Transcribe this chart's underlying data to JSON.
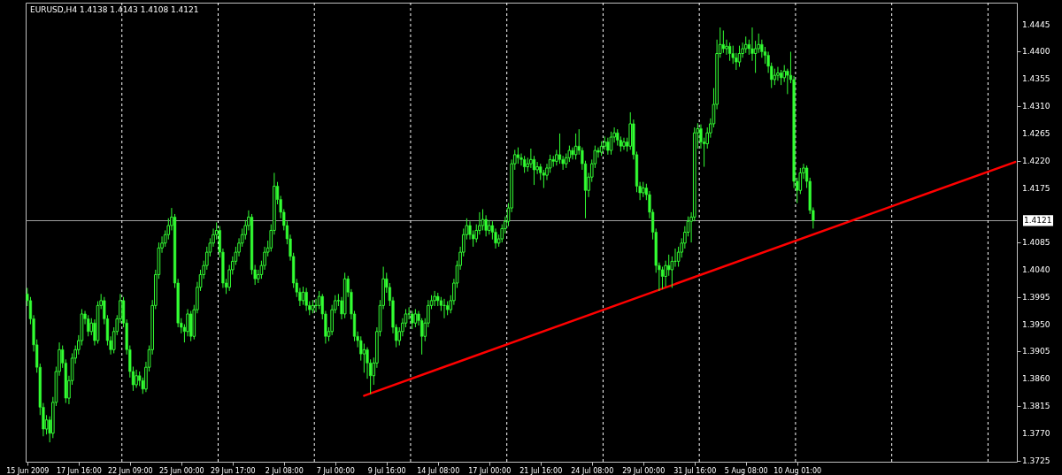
{
  "chart_data": {
    "type": "candlestick",
    "title": "EURUSD,H4  1.4138 1.4143 1.4108 1.4121",
    "categories": [
      "15 Jun 2009",
      null,
      null,
      null,
      null,
      null,
      null,
      null,
      null,
      null,
      null,
      null,
      null,
      null,
      null,
      null,
      "17 Jun 16:00",
      null,
      null,
      null,
      null,
      null,
      null,
      null,
      null,
      null,
      null,
      null,
      null,
      null,
      null,
      null,
      "22 Jun 09:00",
      null,
      null,
      null,
      null,
      null,
      null,
      null,
      null,
      null,
      null,
      null,
      null,
      null,
      null,
      null,
      "25 Jun 00:00",
      null,
      null,
      null,
      null,
      null,
      null,
      null,
      null,
      null,
      null,
      null,
      null,
      null,
      null,
      null,
      "29 Jun 17:00",
      null,
      null,
      null,
      null,
      null,
      null,
      null,
      null,
      null,
      null,
      null,
      null,
      null,
      null,
      null,
      "2 Jul 08:00",
      null,
      null,
      null,
      null,
      null,
      null,
      null,
      null,
      null,
      null,
      null,
      null,
      null,
      null,
      null,
      "7 Jul 00:00",
      null,
      null,
      null,
      null,
      null,
      null,
      null,
      null,
      null,
      null,
      null,
      null,
      null,
      null,
      null,
      "9 Jul 16:00",
      null,
      null,
      null,
      null,
      null,
      null,
      null,
      null,
      null,
      null,
      null,
      null,
      null,
      null,
      null,
      "14 Jul 08:00",
      null,
      null,
      null,
      null,
      null,
      null,
      null,
      null,
      null,
      null,
      null,
      null,
      null,
      null,
      null,
      "17 Jul 00:00",
      null,
      null,
      null,
      null,
      null,
      null,
      null,
      null,
      null,
      null,
      null,
      null,
      null,
      null,
      null,
      "21 Jul 16:00",
      null,
      null,
      null,
      null,
      null,
      null,
      null,
      null,
      null,
      null,
      null,
      null,
      null,
      null,
      null,
      "24 Jul 08:00",
      null,
      null,
      null,
      null,
      null,
      null,
      null,
      null,
      null,
      null,
      null,
      null,
      null,
      null,
      null,
      "29 Jul 00:00",
      null,
      null,
      null,
      null,
      null,
      null,
      null,
      null,
      null,
      null,
      null,
      null,
      null,
      null,
      null,
      "31 Jul 16:00",
      null,
      null,
      null,
      null,
      null,
      null,
      null,
      null,
      null,
      null,
      null,
      null,
      null,
      null,
      null,
      "5 Aug 08:00",
      null,
      null,
      null,
      null,
      null,
      null,
      null,
      null,
      null,
      null,
      null,
      null,
      null,
      null,
      null,
      "10 Aug 01:00",
      null,
      null,
      null,
      null,
      null,
      null,
      null,
      null,
      null,
      null,
      null,
      null,
      null,
      null,
      null,
      null,
      null,
      null,
      null,
      null,
      null,
      null,
      null,
      null,
      null,
      null,
      null,
      null,
      null,
      null,
      null,
      null,
      null,
      null,
      null,
      null,
      null,
      null,
      null,
      null,
      null,
      null,
      null,
      null,
      null,
      null,
      null,
      null,
      null,
      null,
      null,
      null,
      null,
      null,
      null,
      null,
      null,
      null,
      null,
      null,
      null,
      null,
      null,
      null,
      null,
      null,
      null,
      null
    ],
    "ylim": [
      1.3723,
      1.4481
    ],
    "yticks": [
      1.3725,
      {
        "value": 1.377,
        "label": "1.3770"
      },
      1.3815,
      {
        "value": 1.386,
        "label": "1.3860"
      },
      1.3905,
      {
        "value": 1.395,
        "label": "1.3950"
      },
      1.3995,
      {
        "value": 1.404,
        "label": "1.4040"
      },
      1.4085,
      1.4175,
      {
        "value": 1.422,
        "label": "1.4220"
      },
      1.4265,
      {
        "value": 1.431,
        "label": "1.4310"
      },
      1.4355,
      {
        "value": 1.44,
        "label": "1.4400"
      },
      1.4445
    ],
    "ref_lines": [
      {
        "axis": "y",
        "value": 1.4121,
        "label": "1.4121",
        "color": "#a0a0a0"
      }
    ],
    "series": [
      {
        "color": "#33ff33",
        "ohlc": [
          [
            1.4,
            1.401,
            1.398,
            1.3989
          ],
          [
            1.3989,
            1.3995,
            1.395,
            1.3959
          ],
          [
            1.3959,
            1.3965,
            1.3905,
            1.3916
          ],
          [
            1.3916,
            1.3925,
            1.387,
            1.3879
          ],
          [
            1.3879,
            1.3885,
            1.38,
            1.3813
          ],
          [
            1.3813,
            1.382,
            1.3765,
            1.3777
          ],
          [
            1.3777,
            1.38,
            1.3768,
            1.3792
          ],
          [
            1.3792,
            1.3798,
            1.3755,
            1.377
          ],
          [
            1.377,
            1.383,
            1.3762,
            1.3821
          ],
          [
            1.3821,
            1.388,
            1.3815,
            1.3872
          ],
          [
            1.3872,
            1.392,
            1.3865,
            1.3908
          ],
          [
            1.3908,
            1.3915,
            1.3878,
            1.3886
          ],
          [
            1.3886,
            1.3892,
            1.382,
            1.3828
          ],
          [
            1.3828,
            1.3865,
            1.3818,
            1.3857
          ],
          [
            1.3857,
            1.3902,
            1.385,
            1.3894
          ],
          [
            1.3894,
            1.3915,
            1.3885,
            1.3908
          ],
          [
            1.3908,
            1.3932,
            1.39,
            1.3923
          ],
          [
            1.3923,
            1.3975,
            1.3915,
            1.3967
          ],
          [
            1.3967,
            1.3972,
            1.395,
            1.3959
          ],
          [
            1.3959,
            1.3965,
            1.393,
            1.3938
          ],
          [
            1.3938,
            1.396,
            1.3932,
            1.3952
          ],
          [
            1.3952,
            1.3958,
            1.3915,
            1.3923
          ],
          [
            1.3923,
            1.3988,
            1.3918,
            1.3981
          ],
          [
            1.3981,
            1.4,
            1.3975,
            1.3989
          ],
          [
            1.3989,
            1.3995,
            1.395,
            1.3959
          ],
          [
            1.3959,
            1.3965,
            1.3915,
            1.3923
          ],
          [
            1.3923,
            1.393,
            1.39,
            1.3908
          ],
          [
            1.3908,
            1.3945,
            1.3902,
            1.3938
          ],
          [
            1.3938,
            1.3965,
            1.3932,
            1.3959
          ],
          [
            1.3959,
            1.4,
            1.3952,
            1.3989
          ],
          [
            1.3989,
            1.3995,
            1.3945,
            1.3952
          ],
          [
            1.3952,
            1.3958,
            1.39,
            1.3908
          ],
          [
            1.3908,
            1.3915,
            1.3862,
            1.3872
          ],
          [
            1.3872,
            1.388,
            1.384,
            1.385
          ],
          [
            1.385,
            1.3875,
            1.3845,
            1.3865
          ],
          [
            1.3865,
            1.3872,
            1.3848,
            1.3857
          ],
          [
            1.3857,
            1.3862,
            1.3835,
            1.3843
          ],
          [
            1.3843,
            1.3888,
            1.3838,
            1.3879
          ],
          [
            1.3879,
            1.3915,
            1.3872,
            1.3908
          ],
          [
            1.3908,
            1.399,
            1.39,
            1.3981
          ],
          [
            1.3981,
            1.404,
            1.3975,
            1.4032
          ],
          [
            1.4032,
            1.4085,
            1.4025,
            1.4076
          ],
          [
            1.4076,
            1.4095,
            1.4068,
            1.4084
          ],
          [
            1.4084,
            1.4105,
            1.4078,
            1.4098
          ],
          [
            1.4098,
            1.4125,
            1.409,
            1.4113
          ],
          [
            1.4113,
            1.4142,
            1.4105,
            1.4127
          ],
          [
            1.4127,
            1.4132,
            1.401,
            1.4018
          ],
          [
            1.4018,
            1.4025,
            1.3945,
            1.3952
          ],
          [
            1.3952,
            1.396,
            1.3935,
            1.3945
          ],
          [
            1.3945,
            1.395,
            1.392,
            1.3938
          ],
          [
            1.3938,
            1.3975,
            1.393,
            1.3967
          ],
          [
            1.3967,
            1.3972,
            1.3922,
            1.393
          ],
          [
            1.393,
            1.3982,
            1.3925,
            1.3974
          ],
          [
            1.3974,
            1.402,
            1.3968,
            1.4011
          ],
          [
            1.4011,
            1.404,
            1.4005,
            1.4032
          ],
          [
            1.4032,
            1.4055,
            1.4025,
            1.4047
          ],
          [
            1.4047,
            1.4078,
            1.404,
            1.4069
          ],
          [
            1.4069,
            1.4092,
            1.4062,
            1.4084
          ],
          [
            1.4084,
            1.4108,
            1.4078,
            1.4098
          ],
          [
            1.4098,
            1.4118,
            1.409,
            1.4105
          ],
          [
            1.4105,
            1.4112,
            1.406,
            1.4069
          ],
          [
            1.4069,
            1.4075,
            1.401,
            1.4018
          ],
          [
            1.4018,
            1.4025,
            1.4,
            1.4011
          ],
          [
            1.4011,
            1.4048,
            1.4005,
            1.404
          ],
          [
            1.404,
            1.4062,
            1.4032,
            1.4054
          ],
          [
            1.4054,
            1.4078,
            1.4048,
            1.4069
          ],
          [
            1.4069,
            1.4092,
            1.4062,
            1.4084
          ],
          [
            1.4084,
            1.4108,
            1.4078,
            1.4098
          ],
          [
            1.4098,
            1.4122,
            1.409,
            1.4113
          ],
          [
            1.4113,
            1.4138,
            1.4105,
            1.4127
          ],
          [
            1.4127,
            1.4132,
            1.4032,
            1.404
          ],
          [
            1.404,
            1.4048,
            1.4015,
            1.4025
          ],
          [
            1.4025,
            1.404,
            1.4018,
            1.4032
          ],
          [
            1.4032,
            1.4055,
            1.4025,
            1.4047
          ],
          [
            1.4047,
            1.4078,
            1.404,
            1.4069
          ],
          [
            1.4069,
            1.4088,
            1.4062,
            1.4076
          ],
          [
            1.4076,
            1.4115,
            1.407,
            1.4105
          ],
          [
            1.4105,
            1.42,
            1.4098,
            1.4178
          ],
          [
            1.4178,
            1.4185,
            1.4148,
            1.4156
          ],
          [
            1.4156,
            1.4162,
            1.4125,
            1.4135
          ],
          [
            1.4135,
            1.414,
            1.4105,
            1.4113
          ],
          [
            1.4113,
            1.412,
            1.4082,
            1.4091
          ],
          [
            1.4091,
            1.4098,
            1.4055,
            1.4062
          ],
          [
            1.4062,
            1.4068,
            1.401,
            1.4018
          ],
          [
            1.4018,
            1.4025,
            1.3995,
            1.4003
          ],
          [
            1.4003,
            1.401,
            1.398,
            1.3989
          ],
          [
            1.3989,
            1.4012,
            1.3982,
            1.4003
          ],
          [
            1.4003,
            1.401,
            1.3972,
            1.3981
          ],
          [
            1.3981,
            1.3988,
            1.3965,
            1.3974
          ],
          [
            1.3974,
            1.399,
            1.3968,
            1.3981
          ],
          [
            1.3981,
            1.3992,
            1.397,
            1.3981
          ],
          [
            1.3981,
            1.4005,
            1.3975,
            1.3996
          ],
          [
            1.3996,
            1.4,
            1.3958,
            1.3967
          ],
          [
            1.3967,
            1.3972,
            1.3918,
            1.393
          ],
          [
            1.393,
            1.3945,
            1.3922,
            1.3938
          ],
          [
            1.3938,
            1.3982,
            1.3932,
            1.3974
          ],
          [
            1.3974,
            1.3998,
            1.3968,
            1.3989
          ],
          [
            1.3989,
            1.4,
            1.398,
            1.3989
          ],
          [
            1.3989,
            1.3995,
            1.3958,
            1.3967
          ],
          [
            1.3967,
            1.4035,
            1.396,
            1.4025
          ],
          [
            1.4025,
            1.403,
            1.3995,
            1.4003
          ],
          [
            1.4003,
            1.4008,
            1.3958,
            1.3967
          ],
          [
            1.3967,
            1.3972,
            1.3922,
            1.393
          ],
          [
            1.393,
            1.3938,
            1.3912,
            1.3923
          ],
          [
            1.3923,
            1.393,
            1.389,
            1.3901
          ],
          [
            1.3901,
            1.3918,
            1.387,
            1.3908
          ],
          [
            1.3908,
            1.3912,
            1.386,
            1.3886
          ],
          [
            1.3886,
            1.3892,
            1.3835,
            1.3865
          ],
          [
            1.3865,
            1.3895,
            1.385,
            1.3886
          ],
          [
            1.3886,
            1.3945,
            1.3878,
            1.3938
          ],
          [
            1.3938,
            1.399,
            1.393,
            1.3981
          ],
          [
            1.3981,
            1.4045,
            1.3975,
            1.4025
          ],
          [
            1.4025,
            1.4035,
            1.4002,
            1.4011
          ],
          [
            1.4011,
            1.4018,
            1.398,
            1.3989
          ],
          [
            1.3989,
            1.3995,
            1.3935,
            1.3945
          ],
          [
            1.3945,
            1.395,
            1.3912,
            1.3923
          ],
          [
            1.3923,
            1.3945,
            1.3915,
            1.3938
          ],
          [
            1.3938,
            1.396,
            1.393,
            1.3952
          ],
          [
            1.3952,
            1.3975,
            1.3945,
            1.3967
          ],
          [
            1.3967,
            1.3978,
            1.3958,
            1.3967
          ],
          [
            1.3967,
            1.3972,
            1.3942,
            1.3952
          ],
          [
            1.3952,
            1.3975,
            1.3945,
            1.3967
          ],
          [
            1.3967,
            1.3972,
            1.3948,
            1.3956
          ],
          [
            1.3956,
            1.396,
            1.39,
            1.393
          ],
          [
            1.393,
            1.396,
            1.3922,
            1.3952
          ],
          [
            1.3952,
            1.399,
            1.3945,
            1.3981
          ],
          [
            1.3981,
            1.3998,
            1.3975,
            1.3989
          ],
          [
            1.3989,
            1.4005,
            1.398,
            1.3996
          ],
          [
            1.3996,
            1.4002,
            1.398,
            1.3989
          ],
          [
            1.3989,
            1.3995,
            1.3972,
            1.3981
          ],
          [
            1.3981,
            1.3992,
            1.396,
            1.3981
          ],
          [
            1.3981,
            1.3988,
            1.3965,
            1.3974
          ],
          [
            1.3974,
            1.3998,
            1.3968,
            1.3989
          ],
          [
            1.3989,
            1.4025,
            1.3982,
            1.4018
          ],
          [
            1.4018,
            1.4055,
            1.401,
            1.4047
          ],
          [
            1.4047,
            1.4078,
            1.404,
            1.4069
          ],
          [
            1.4069,
            1.4108,
            1.4062,
            1.4098
          ],
          [
            1.4098,
            1.4125,
            1.409,
            1.4113
          ],
          [
            1.4113,
            1.412,
            1.409,
            1.4098
          ],
          [
            1.4098,
            1.4105,
            1.4078,
            1.4091
          ],
          [
            1.4091,
            1.4115,
            1.4085,
            1.4105
          ],
          [
            1.4105,
            1.4135,
            1.4098,
            1.4113
          ],
          [
            1.4113,
            1.414,
            1.4105,
            1.4123
          ],
          [
            1.4123,
            1.413,
            1.4095,
            1.4105
          ],
          [
            1.4105,
            1.4122,
            1.4098,
            1.4113
          ],
          [
            1.4113,
            1.412,
            1.409,
            1.4102
          ],
          [
            1.4102,
            1.4108,
            1.4075,
            1.4084
          ],
          [
            1.4084,
            1.4098,
            1.4078,
            1.4091
          ],
          [
            1.4091,
            1.4115,
            1.4085,
            1.4108
          ],
          [
            1.4108,
            1.4128,
            1.41,
            1.412
          ],
          [
            1.412,
            1.415,
            1.4112,
            1.4142
          ],
          [
            1.4142,
            1.4222,
            1.4135,
            1.4215
          ],
          [
            1.4215,
            1.4238,
            1.4205,
            1.423
          ],
          [
            1.423,
            1.4242,
            1.4215,
            1.4225
          ],
          [
            1.4225,
            1.4232,
            1.4212,
            1.4222
          ],
          [
            1.4222,
            1.4228,
            1.42,
            1.421
          ],
          [
            1.421,
            1.4225,
            1.4202,
            1.4215
          ],
          [
            1.4215,
            1.424,
            1.4208,
            1.4222
          ],
          [
            1.4222,
            1.4228,
            1.418,
            1.4205
          ],
          [
            1.4205,
            1.4218,
            1.4198,
            1.421
          ],
          [
            1.421,
            1.4215,
            1.4188,
            1.42
          ],
          [
            1.42,
            1.4205,
            1.4175,
            1.4196
          ],
          [
            1.4196,
            1.4215,
            1.4188,
            1.4208
          ],
          [
            1.4208,
            1.423,
            1.42,
            1.4222
          ],
          [
            1.4222,
            1.4228,
            1.421,
            1.4219
          ],
          [
            1.4219,
            1.4238,
            1.4212,
            1.423
          ],
          [
            1.423,
            1.4265,
            1.4215,
            1.4222
          ],
          [
            1.4222,
            1.4228,
            1.4205,
            1.4215
          ],
          [
            1.4215,
            1.4232,
            1.4208,
            1.4225
          ],
          [
            1.4225,
            1.4245,
            1.4218,
            1.4237
          ],
          [
            1.4237,
            1.4242,
            1.4222,
            1.423
          ],
          [
            1.423,
            1.4265,
            1.4222,
            1.4244
          ],
          [
            1.4244,
            1.4272,
            1.423,
            1.4237
          ],
          [
            1.4237,
            1.4242,
            1.4205,
            1.4215
          ],
          [
            1.4215,
            1.422,
            1.4125,
            1.4171
          ],
          [
            1.4171,
            1.42,
            1.416,
            1.4193
          ],
          [
            1.4193,
            1.4222,
            1.4185,
            1.4215
          ],
          [
            1.4215,
            1.4245,
            1.4208,
            1.4237
          ],
          [
            1.4237,
            1.4242,
            1.4225,
            1.4234
          ],
          [
            1.4234,
            1.4252,
            1.4228,
            1.4244
          ],
          [
            1.4244,
            1.426,
            1.4238,
            1.4251
          ],
          [
            1.4251,
            1.4258,
            1.423,
            1.4237
          ],
          [
            1.4237,
            1.4268,
            1.423,
            1.4259
          ],
          [
            1.4259,
            1.4275,
            1.425,
            1.4266
          ],
          [
            1.4266,
            1.4272,
            1.4245,
            1.4254
          ],
          [
            1.4254,
            1.426,
            1.4235,
            1.4244
          ],
          [
            1.4244,
            1.4258,
            1.4238,
            1.4251
          ],
          [
            1.4251,
            1.4258,
            1.4235,
            1.4244
          ],
          [
            1.4244,
            1.43,
            1.4238,
            1.4281
          ],
          [
            1.4281,
            1.4288,
            1.4222,
            1.423
          ],
          [
            1.423,
            1.4235,
            1.4168,
            1.4178
          ],
          [
            1.4178,
            1.4185,
            1.4155,
            1.4167
          ],
          [
            1.4167,
            1.4185,
            1.416,
            1.4175
          ],
          [
            1.4175,
            1.4182,
            1.4155,
            1.4164
          ],
          [
            1.4164,
            1.417,
            1.4125,
            1.4135
          ],
          [
            1.4135,
            1.414,
            1.409,
            1.4102
          ],
          [
            1.4102,
            1.4108,
            1.4035,
            1.4047
          ],
          [
            1.4047,
            1.4052,
            1.4005,
            1.404
          ],
          [
            1.404,
            1.4045,
            1.4008,
            1.4029
          ],
          [
            1.4029,
            1.4055,
            1.4012,
            1.4047
          ],
          [
            1.4047,
            1.4065,
            1.403,
            1.404
          ],
          [
            1.404,
            1.4062,
            1.401,
            1.4054
          ],
          [
            1.4054,
            1.4075,
            1.4045,
            1.4054
          ],
          [
            1.4054,
            1.4078,
            1.4045,
            1.4069
          ],
          [
            1.4069,
            1.4092,
            1.406,
            1.4084
          ],
          [
            1.4084,
            1.4112,
            1.4075,
            1.4102
          ],
          [
            1.4102,
            1.4128,
            1.4095,
            1.412
          ],
          [
            1.412,
            1.4135,
            1.4085,
            1.4127
          ],
          [
            1.4127,
            1.4275,
            1.412,
            1.4266
          ],
          [
            1.4266,
            1.4282,
            1.424,
            1.4273
          ],
          [
            1.4273,
            1.428,
            1.424,
            1.4251
          ],
          [
            1.4251,
            1.4258,
            1.421,
            1.4248
          ],
          [
            1.4248,
            1.4275,
            1.424,
            1.4266
          ],
          [
            1.4266,
            1.429,
            1.4258,
            1.4281
          ],
          [
            1.4281,
            1.434,
            1.4275,
            1.4313
          ],
          [
            1.4313,
            1.442,
            1.4305,
            1.4397
          ],
          [
            1.4397,
            1.444,
            1.439,
            1.4412
          ],
          [
            1.4412,
            1.4435,
            1.4398,
            1.4405
          ],
          [
            1.4405,
            1.442,
            1.4395,
            1.4409
          ],
          [
            1.4409,
            1.4415,
            1.4385,
            1.4397
          ],
          [
            1.4397,
            1.441,
            1.438,
            1.439
          ],
          [
            1.439,
            1.4398,
            1.437,
            1.4383
          ],
          [
            1.4383,
            1.441,
            1.4375,
            1.4397
          ],
          [
            1.4397,
            1.4415,
            1.439,
            1.4405
          ],
          [
            1.4405,
            1.4425,
            1.4398,
            1.4412
          ],
          [
            1.4412,
            1.442,
            1.4395,
            1.4405
          ],
          [
            1.4405,
            1.444,
            1.4385,
            1.4397
          ],
          [
            1.4397,
            1.4418,
            1.4365,
            1.4405
          ],
          [
            1.4405,
            1.443,
            1.4398,
            1.4412
          ],
          [
            1.4412,
            1.442,
            1.439,
            1.44
          ],
          [
            1.44,
            1.4408,
            1.438,
            1.4394
          ],
          [
            1.4394,
            1.44,
            1.4365,
            1.4376
          ],
          [
            1.4376,
            1.4382,
            1.434,
            1.4354
          ],
          [
            1.4354,
            1.4372,
            1.4345,
            1.4361
          ],
          [
            1.4361,
            1.4375,
            1.4352,
            1.4365
          ],
          [
            1.4365,
            1.437,
            1.4345,
            1.4357
          ],
          [
            1.4357,
            1.4378,
            1.435,
            1.4368
          ],
          [
            1.4368,
            1.4372,
            1.433,
            1.4361
          ],
          [
            1.4361,
            1.44,
            1.4348,
            1.4354
          ],
          [
            1.4354,
            1.436,
            1.4175,
            1.4186
          ],
          [
            1.4186,
            1.4192,
            1.415,
            1.4171
          ],
          [
            1.4171,
            1.4208,
            1.4165,
            1.42
          ],
          [
            1.42,
            1.4215,
            1.419,
            1.4208
          ],
          [
            1.4208,
            1.4212,
            1.4175,
            1.4186
          ],
          [
            1.4186,
            1.4192,
            1.4132,
            1.4138
          ],
          [
            1.4138,
            1.4143,
            1.4108,
            1.4121
          ],
          null,
          null,
          null,
          null,
          null,
          null,
          null,
          null,
          null,
          null,
          null,
          null,
          null,
          null,
          null,
          null,
          null,
          null,
          null,
          null,
          null,
          null,
          null,
          null,
          null,
          null,
          null,
          null,
          null,
          null,
          null,
          null,
          null,
          null,
          null,
          null,
          null,
          null,
          null,
          null,
          null,
          null,
          null,
          null,
          null,
          null,
          null,
          null,
          null,
          null,
          null,
          null,
          null,
          null,
          null,
          null,
          null,
          null,
          null,
          null,
          null,
          null,
          null
        ]
      },
      {
        "type": "line",
        "color": "#ff0000",
        "values": [
          null,
          null,
          null,
          null,
          null,
          null,
          null,
          null,
          null,
          null,
          null,
          null,
          null,
          null,
          null,
          null,
          null,
          null,
          null,
          null,
          null,
          null,
          null,
          null,
          null,
          null,
          null,
          null,
          null,
          null,
          null,
          null,
          null,
          null,
          null,
          null,
          null,
          null,
          null,
          null,
          null,
          null,
          null,
          null,
          null,
          null,
          null,
          null,
          null,
          null,
          null,
          null,
          null,
          null,
          null,
          null,
          null,
          null,
          null,
          null,
          null,
          null,
          null,
          null,
          null,
          null,
          null,
          null,
          null,
          null,
          null,
          null,
          null,
          null,
          null,
          null,
          null,
          null,
          null,
          null,
          null,
          null,
          null,
          null,
          null,
          null,
          null,
          null,
          null,
          null,
          null,
          null,
          null,
          null,
          null,
          null,
          null,
          null,
          null,
          null,
          null,
          null,
          null,
          null,
          null,
          1.3832,
          null,
          null,
          null,
          null,
          null,
          null,
          null,
          null,
          null,
          null,
          null,
          null,
          null,
          null,
          null,
          null,
          null,
          null,
          null,
          null,
          null,
          null,
          null,
          null,
          null,
          null,
          null,
          null,
          null,
          null,
          null,
          null,
          null,
          null,
          null,
          null,
          null,
          null,
          null,
          null,
          null,
          null,
          null,
          null,
          null,
          null,
          null,
          null,
          null,
          null,
          null,
          null,
          null,
          null,
          null,
          null,
          null,
          null,
          null,
          null,
          null,
          null,
          null,
          null,
          null,
          null,
          null,
          null,
          null,
          null,
          null,
          null,
          null,
          null,
          null,
          null,
          null,
          null,
          null,
          null,
          null,
          null,
          null,
          null,
          null,
          null,
          null,
          null,
          null,
          null,
          null,
          null,
          null,
          null,
          null,
          null,
          null,
          null,
          null,
          null,
          null,
          null,
          null,
          null,
          null,
          null,
          null,
          null,
          null,
          null,
          null,
          null,
          null,
          null,
          null,
          null,
          null,
          null,
          null,
          null,
          null,
          null,
          null,
          null,
          null,
          null,
          null,
          null,
          null,
          null,
          null,
          null,
          null,
          null,
          null,
          null,
          null,
          null,
          null,
          null,
          null,
          null,
          null,
          null,
          null,
          null,
          null,
          null,
          null,
          null,
          null,
          null,
          null,
          null,
          null,
          null,
          null,
          null,
          null,
          null,
          null,
          null,
          null,
          null,
          null,
          null,
          null,
          null,
          null,
          null,
          null,
          null,
          null,
          null,
          null,
          null,
          null,
          null,
          null,
          null,
          null,
          null,
          null,
          null,
          null,
          null,
          null,
          null,
          null,
          null,
          null,
          null,
          null,
          null,
          null,
          null,
          null,
          null,
          null,
          null,
          null,
          null,
          1.4218
        ]
      }
    ]
  }
}
